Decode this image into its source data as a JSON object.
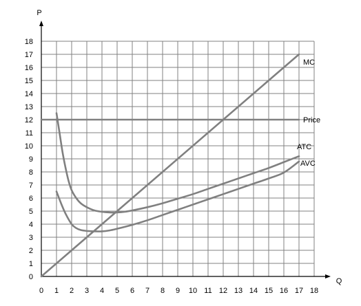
{
  "chart_data": {
    "type": "line",
    "title": "",
    "xlabel": "Q",
    "ylabel": "P",
    "xlim": [
      0,
      18
    ],
    "ylim": [
      0,
      18
    ],
    "xticks": [
      0,
      1,
      2,
      3,
      4,
      5,
      6,
      7,
      8,
      9,
      10,
      11,
      12,
      13,
      14,
      15,
      16,
      17,
      18
    ],
    "yticks": [
      0,
      1,
      2,
      3,
      4,
      5,
      6,
      7,
      8,
      9,
      10,
      11,
      12,
      13,
      14,
      15,
      16,
      17,
      18
    ],
    "grid": true,
    "legend": "none",
    "line_color": "#808080",
    "series": [
      {
        "name": "MC",
        "x": [
          0,
          17
        ],
        "y": [
          0,
          17
        ]
      },
      {
        "name": "Price",
        "x": [
          0,
          17
        ],
        "y": [
          12,
          12
        ]
      },
      {
        "name": "ATC",
        "x": [
          1,
          1.2,
          1.4,
          1.6,
          1.8,
          2,
          2.3,
          2.6,
          3,
          3.5,
          4,
          4.5,
          5,
          5.5,
          6,
          7,
          8,
          9,
          10,
          11,
          12,
          13,
          14,
          15,
          16,
          17
        ],
        "y": [
          12.5,
          11.0,
          9.5,
          8.3,
          7.3,
          6.6,
          6.0,
          5.6,
          5.3,
          5.05,
          4.95,
          4.9,
          4.9,
          4.95,
          5.05,
          5.3,
          5.6,
          5.95,
          6.3,
          6.7,
          7.1,
          7.5,
          7.9,
          8.3,
          8.75,
          9.2
        ]
      },
      {
        "name": "AVC",
        "x": [
          1,
          1.3,
          1.6,
          2,
          2.3,
          2.6,
          3,
          3.5,
          4,
          4.5,
          5,
          6,
          7,
          8,
          9,
          10,
          11,
          12,
          13,
          14,
          15,
          16,
          17
        ],
        "y": [
          6.5,
          5.6,
          4.8,
          4.0,
          3.7,
          3.55,
          3.48,
          3.45,
          3.45,
          3.52,
          3.65,
          3.95,
          4.3,
          4.7,
          5.1,
          5.5,
          5.9,
          6.3,
          6.7,
          7.1,
          7.5,
          7.95,
          8.8
        ]
      }
    ]
  }
}
